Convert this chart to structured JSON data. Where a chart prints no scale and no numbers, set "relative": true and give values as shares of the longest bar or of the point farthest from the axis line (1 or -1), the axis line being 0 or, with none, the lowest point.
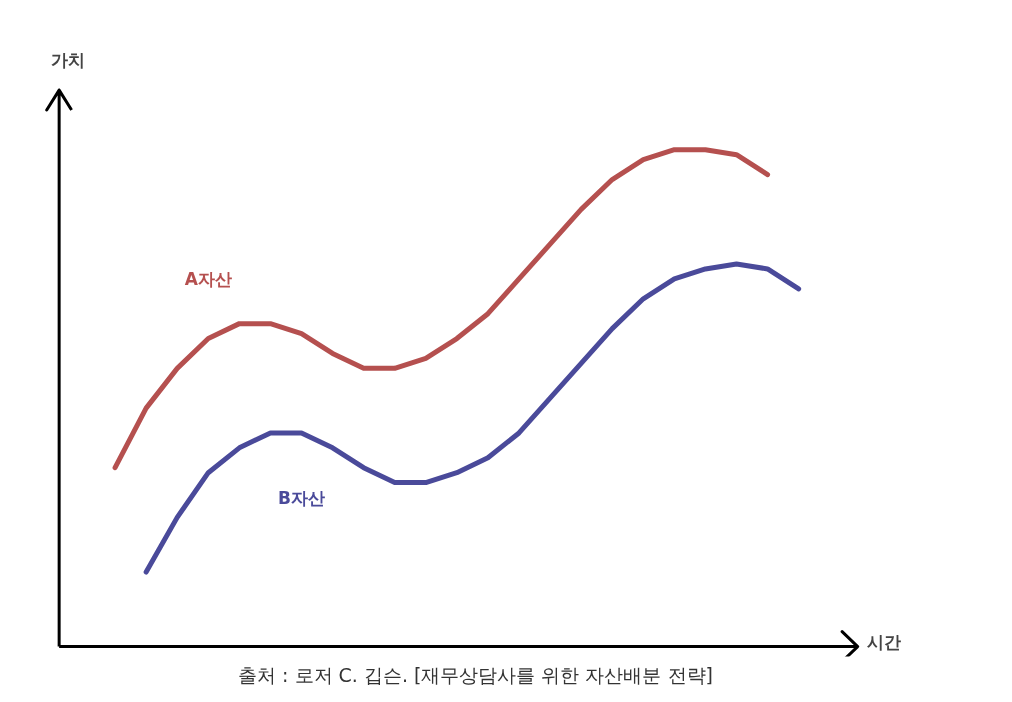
{
  "chart_data": {
    "type": "line",
    "relative": true,
    "ylabel": "가치",
    "xlabel": "시간",
    "categories": [
      null,
      null,
      null,
      null,
      null,
      null,
      null,
      null,
      null,
      null,
      null,
      null,
      null,
      null,
      null,
      null,
      null,
      null,
      null,
      null,
      null,
      null,
      null
    ],
    "series": [
      {
        "name": "A자산",
        "color": "#b5504f",
        "values": [
          0.36,
          0.48,
          0.56,
          0.62,
          0.65,
          0.65,
          0.63,
          0.59,
          0.56,
          0.56,
          0.58,
          0.62,
          0.67,
          0.74,
          0.81,
          0.88,
          0.94,
          0.98,
          1.0,
          1.0,
          0.99,
          0.95,
          null
        ]
      },
      {
        "name": "B자산",
        "color": "#4a4a9a",
        "values": [
          null,
          0.15,
          0.26,
          0.35,
          0.4,
          0.43,
          0.43,
          0.4,
          0.36,
          0.33,
          0.33,
          0.35,
          0.38,
          0.43,
          0.5,
          0.57,
          0.64,
          0.7,
          0.74,
          0.76,
          0.77,
          0.76,
          0.72
        ]
      }
    ],
    "annotations": [
      "출처 : 로저 C. 깁슨. [재무상담사를 위한 자산배분 전략]"
    ],
    "grid": false
  }
}
